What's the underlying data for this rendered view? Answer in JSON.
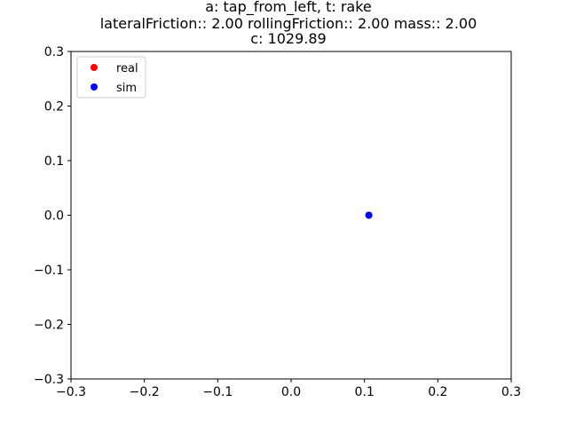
{
  "chart_data": {
    "type": "scatter",
    "title_lines": [
      "a: tap_from_left, t: rake",
      "lateralFriction:: 2.00 rollingFriction:: 2.00 mass:: 2.00",
      "c: 1029.89"
    ],
    "xlabel": "",
    "ylabel": "",
    "xlim": [
      -0.3,
      0.3
    ],
    "ylim": [
      -0.3,
      0.3
    ],
    "x_ticks": [
      -0.3,
      -0.2,
      -0.1,
      0.0,
      0.1,
      0.2,
      0.3
    ],
    "x_tick_labels": [
      "−0.3",
      "−0.2",
      "−0.1",
      "0.0",
      "0.1",
      "0.2",
      "0.3"
    ],
    "y_ticks": [
      -0.3,
      -0.2,
      -0.1,
      0.0,
      0.1,
      0.2,
      0.3
    ],
    "y_tick_labels": [
      "−0.3",
      "−0.2",
      "−0.1",
      "0.0",
      "0.1",
      "0.2",
      "0.3"
    ],
    "grid": false,
    "legend_position": "top-left",
    "series": [
      {
        "name": "real",
        "color": "#ff0000",
        "points": [
          [
            0.106,
            0.0
          ]
        ]
      },
      {
        "name": "sim",
        "color": "#0000ff",
        "points": [
          [
            0.106,
            0.0
          ]
        ]
      }
    ]
  }
}
